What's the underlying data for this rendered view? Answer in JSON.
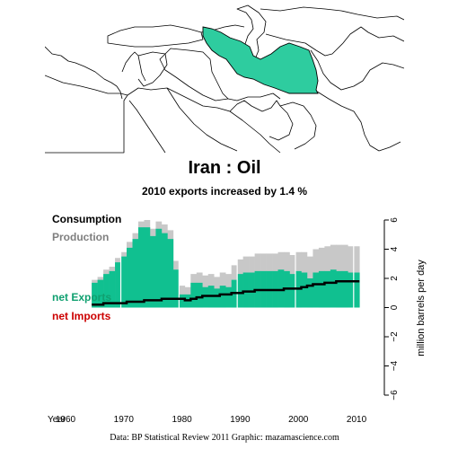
{
  "map": {
    "highlight_color": "#2ecc9f"
  },
  "title": "Iran :  Oil",
  "subtitle": "2010 exports increased by 1.4 %",
  "caption": "Data: BP Statistical Review 2011     Graphic: mazamascience.com",
  "colors": {
    "production": "#c8c8c8",
    "exports": "#10c090",
    "consumption": "#000000",
    "imports": "#cc0000"
  },
  "chart_data": {
    "type": "bar",
    "x_label": "Year",
    "y_label": "million barrels per day",
    "xlim": [
      1958,
      2012
    ],
    "ylim": [
      -6,
      6
    ],
    "x_ticks": [
      1960,
      1970,
      1980,
      1990,
      2000,
      2010
    ],
    "y_ticks": [
      -6,
      -4,
      -2,
      0,
      2,
      4,
      6
    ],
    "legend": [
      "Consumption",
      "Production",
      "net Exports",
      "net Imports"
    ],
    "years": [
      1965,
      1966,
      1967,
      1968,
      1969,
      1970,
      1971,
      1972,
      1973,
      1974,
      1975,
      1976,
      1977,
      1978,
      1979,
      1980,
      1981,
      1982,
      1983,
      1984,
      1985,
      1986,
      1987,
      1988,
      1989,
      1990,
      1991,
      1992,
      1993,
      1994,
      1995,
      1996,
      1997,
      1998,
      1999,
      2000,
      2001,
      2002,
      2003,
      2004,
      2005,
      2006,
      2007,
      2008,
      2009,
      2010
    ],
    "series": [
      {
        "name": "Production",
        "values": [
          1.9,
          2.1,
          2.6,
          2.8,
          3.4,
          3.8,
          4.5,
          5.1,
          5.9,
          6.0,
          5.4,
          5.9,
          5.7,
          5.3,
          3.2,
          1.5,
          1.4,
          2.3,
          2.4,
          2.2,
          2.3,
          2.1,
          2.4,
          2.3,
          2.9,
          3.3,
          3.5,
          3.5,
          3.7,
          3.7,
          3.7,
          3.7,
          3.8,
          3.8,
          3.6,
          3.8,
          3.8,
          3.5,
          4.0,
          4.1,
          4.2,
          4.3,
          4.3,
          4.3,
          4.2,
          4.2
        ]
      },
      {
        "name": "Consumption",
        "values": [
          0.2,
          0.2,
          0.3,
          0.3,
          0.3,
          0.3,
          0.4,
          0.4,
          0.4,
          0.5,
          0.5,
          0.5,
          0.6,
          0.6,
          0.6,
          0.6,
          0.5,
          0.6,
          0.7,
          0.8,
          0.8,
          0.8,
          0.9,
          0.9,
          1.0,
          1.0,
          1.1,
          1.1,
          1.2,
          1.2,
          1.2,
          1.2,
          1.2,
          1.3,
          1.3,
          1.3,
          1.4,
          1.5,
          1.6,
          1.6,
          1.7,
          1.7,
          1.8,
          1.8,
          1.8,
          1.8
        ]
      }
    ]
  }
}
